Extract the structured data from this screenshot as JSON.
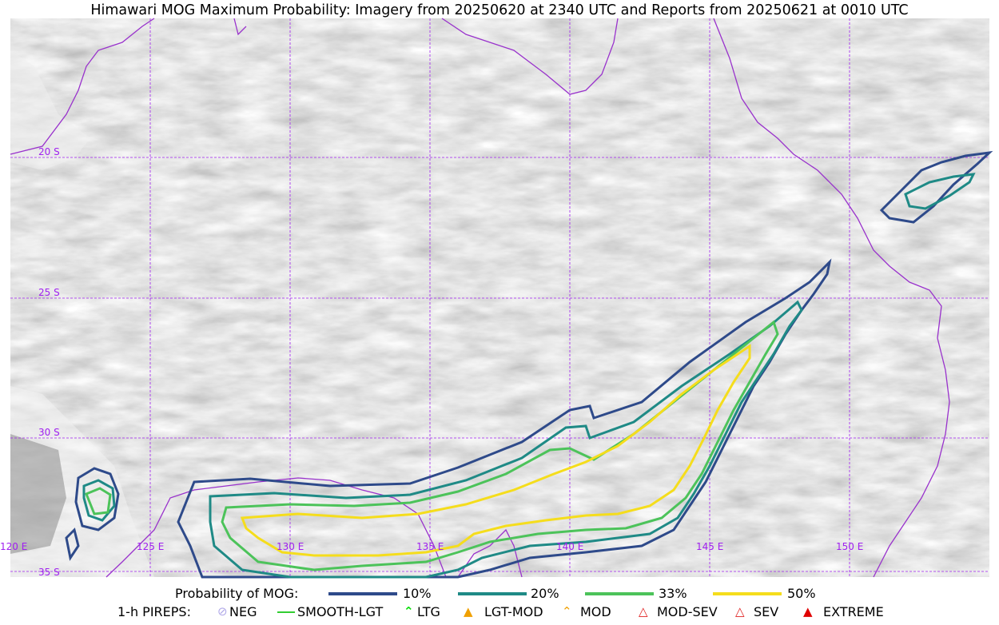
{
  "title": "Himawari MOG Maximum Probability: Imagery from 20250620 at 2340 UTC and Reports from 20250621 at 0010 UTC",
  "map": {
    "lat_labels": [
      "20 S",
      "25 S",
      "30 S",
      "35 S"
    ],
    "lon_labels": [
      "120 E",
      "125 E",
      "130 E",
      "135 E",
      "140 E",
      "145 E",
      "150 E"
    ],
    "gridline_color": "#a020f0",
    "coastline_color": "#9932cc"
  },
  "legend": {
    "probability": {
      "label": "Probability of MOG:",
      "items": [
        {
          "label": "10%",
          "color": "#2e4a8a"
        },
        {
          "label": "20%",
          "color": "#1f8a86"
        },
        {
          "label": "33%",
          "color": "#4cc35a"
        },
        {
          "label": "50%",
          "color": "#f5dd1c"
        }
      ]
    },
    "pireps": {
      "label": "1-h PIREPS:",
      "items": [
        {
          "label": "NEG",
          "icon": "neg-circle-icon",
          "color": "#b0a8e8"
        },
        {
          "label": "SMOOTH-LGT",
          "icon": "smooth-light-line-icon",
          "color": "#32cd32"
        },
        {
          "label": "LTG",
          "icon": "light-chevron-icon",
          "color": "#00dd00"
        },
        {
          "label": "LGT-MOD",
          "icon": "light-moderate-icon",
          "color": "#f0a000"
        },
        {
          "label": "MOD",
          "icon": "moderate-icon",
          "color": "#f0a000"
        },
        {
          "label": "MOD-SEV",
          "icon": "moderate-severe-icon",
          "color": "#e02020"
        },
        {
          "label": "SEV",
          "icon": "severe-icon",
          "color": "#e02020"
        },
        {
          "label": "EXTREME",
          "icon": "extreme-icon",
          "color": "#e00000"
        }
      ]
    }
  }
}
